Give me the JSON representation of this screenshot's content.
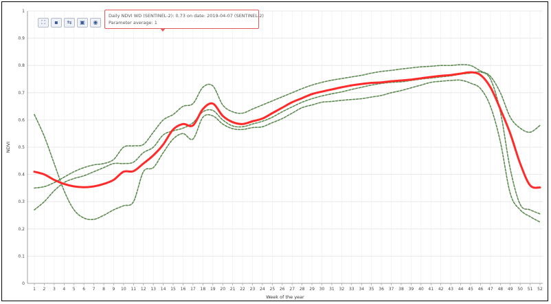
{
  "chart_data": {
    "type": "line",
    "xlabel": "Week of the year",
    "ylabel": "NDVI",
    "xlim": [
      1,
      52
    ],
    "ylim": [
      0,
      1
    ],
    "x": [
      1,
      2,
      3,
      4,
      5,
      6,
      7,
      8,
      9,
      10,
      11,
      12,
      13,
      14,
      15,
      16,
      17,
      18,
      19,
      20,
      21,
      22,
      23,
      24,
      25,
      26,
      27,
      28,
      29,
      30,
      31,
      32,
      33,
      34,
      35,
      36,
      37,
      38,
      39,
      40,
      41,
      42,
      43,
      44,
      45,
      46,
      47,
      48,
      49,
      50,
      51,
      52
    ],
    "yticks": [
      0,
      0.1,
      0.2,
      0.3,
      0.4,
      0.5,
      0.6,
      0.7,
      0.8,
      0.9,
      1
    ],
    "grid": true,
    "series": [
      {
        "role": "mean",
        "color": "#ff2a2a",
        "style": "solid",
        "values": [
          0.41,
          0.4,
          0.38,
          0.365,
          0.356,
          0.353,
          0.356,
          0.365,
          0.38,
          0.41,
          0.412,
          0.44,
          0.47,
          0.51,
          0.565,
          0.585,
          0.58,
          0.64,
          0.66,
          0.615,
          0.592,
          0.585,
          0.595,
          0.605,
          0.625,
          0.645,
          0.665,
          0.68,
          0.695,
          0.704,
          0.712,
          0.72,
          0.727,
          0.732,
          0.736,
          0.738,
          0.742,
          0.745,
          0.748,
          0.753,
          0.758,
          0.762,
          0.765,
          0.77,
          0.775,
          0.765,
          0.72,
          0.64,
          0.55,
          0.44,
          0.36,
          0.352
        ]
      },
      {
        "role": "upper-bound",
        "color": "#5e8a52",
        "style": "dashed",
        "values": [
          0.35,
          0.355,
          0.37,
          0.39,
          0.41,
          0.425,
          0.435,
          0.44,
          0.455,
          0.5,
          0.505,
          0.51,
          0.555,
          0.6,
          0.62,
          0.65,
          0.66,
          0.72,
          0.725,
          0.655,
          0.63,
          0.625,
          0.64,
          0.655,
          0.67,
          0.685,
          0.7,
          0.715,
          0.728,
          0.738,
          0.746,
          0.752,
          0.758,
          0.764,
          0.772,
          0.778,
          0.782,
          0.787,
          0.791,
          0.795,
          0.797,
          0.8,
          0.8,
          0.803,
          0.8,
          0.78,
          0.76,
          0.7,
          0.61,
          0.57,
          0.555,
          0.58
        ]
      },
      {
        "role": "lower-bound",
        "color": "#5e8a52",
        "style": "dashed",
        "values": [
          0.62,
          0.54,
          0.44,
          0.34,
          0.27,
          0.24,
          0.235,
          0.25,
          0.27,
          0.285,
          0.3,
          0.41,
          0.425,
          0.48,
          0.53,
          0.55,
          0.53,
          0.61,
          0.615,
          0.585,
          0.568,
          0.565,
          0.572,
          0.575,
          0.59,
          0.605,
          0.625,
          0.645,
          0.655,
          0.665,
          0.668,
          0.672,
          0.675,
          0.678,
          0.684,
          0.69,
          0.7,
          0.708,
          0.718,
          0.728,
          0.738,
          0.742,
          0.745,
          0.746,
          0.735,
          0.715,
          0.65,
          0.52,
          0.33,
          0.27,
          0.245,
          0.225
        ]
      },
      {
        "role": "extra-bound",
        "color": "#5e8a52",
        "style": "dashed",
        "values": [
          0.27,
          0.3,
          0.34,
          0.37,
          0.385,
          0.395,
          0.41,
          0.425,
          0.44,
          0.44,
          0.445,
          0.48,
          0.5,
          0.545,
          0.56,
          0.57,
          0.59,
          0.63,
          0.635,
          0.6,
          0.578,
          0.575,
          0.585,
          0.595,
          0.61,
          0.63,
          0.648,
          0.665,
          0.678,
          0.688,
          0.696,
          0.703,
          0.712,
          0.72,
          0.728,
          0.734,
          0.738,
          0.74,
          0.745,
          0.75,
          0.754,
          0.758,
          0.762,
          0.768,
          0.772,
          0.776,
          0.75,
          0.63,
          0.42,
          0.29,
          0.27,
          0.255
        ]
      }
    ]
  },
  "toolbar": {
    "buttons": [
      {
        "name": "zoom-reset-button",
        "icon": "expand-icon",
        "glyph": "⛶"
      },
      {
        "name": "save-button",
        "icon": "save-icon",
        "glyph": "▪"
      },
      {
        "name": "share-button",
        "icon": "share-icon",
        "glyph": "⇆"
      },
      {
        "name": "image-button",
        "icon": "image-icon",
        "glyph": "▣"
      },
      {
        "name": "view-button",
        "icon": "eye-icon",
        "glyph": "◉"
      }
    ]
  },
  "tooltip": {
    "line1": "Daily NDVI WD (SENTINEL-2): 0.73 on date: 2019-04-07 (SENTINEL-2)",
    "line2": "Parameter average: 1"
  }
}
